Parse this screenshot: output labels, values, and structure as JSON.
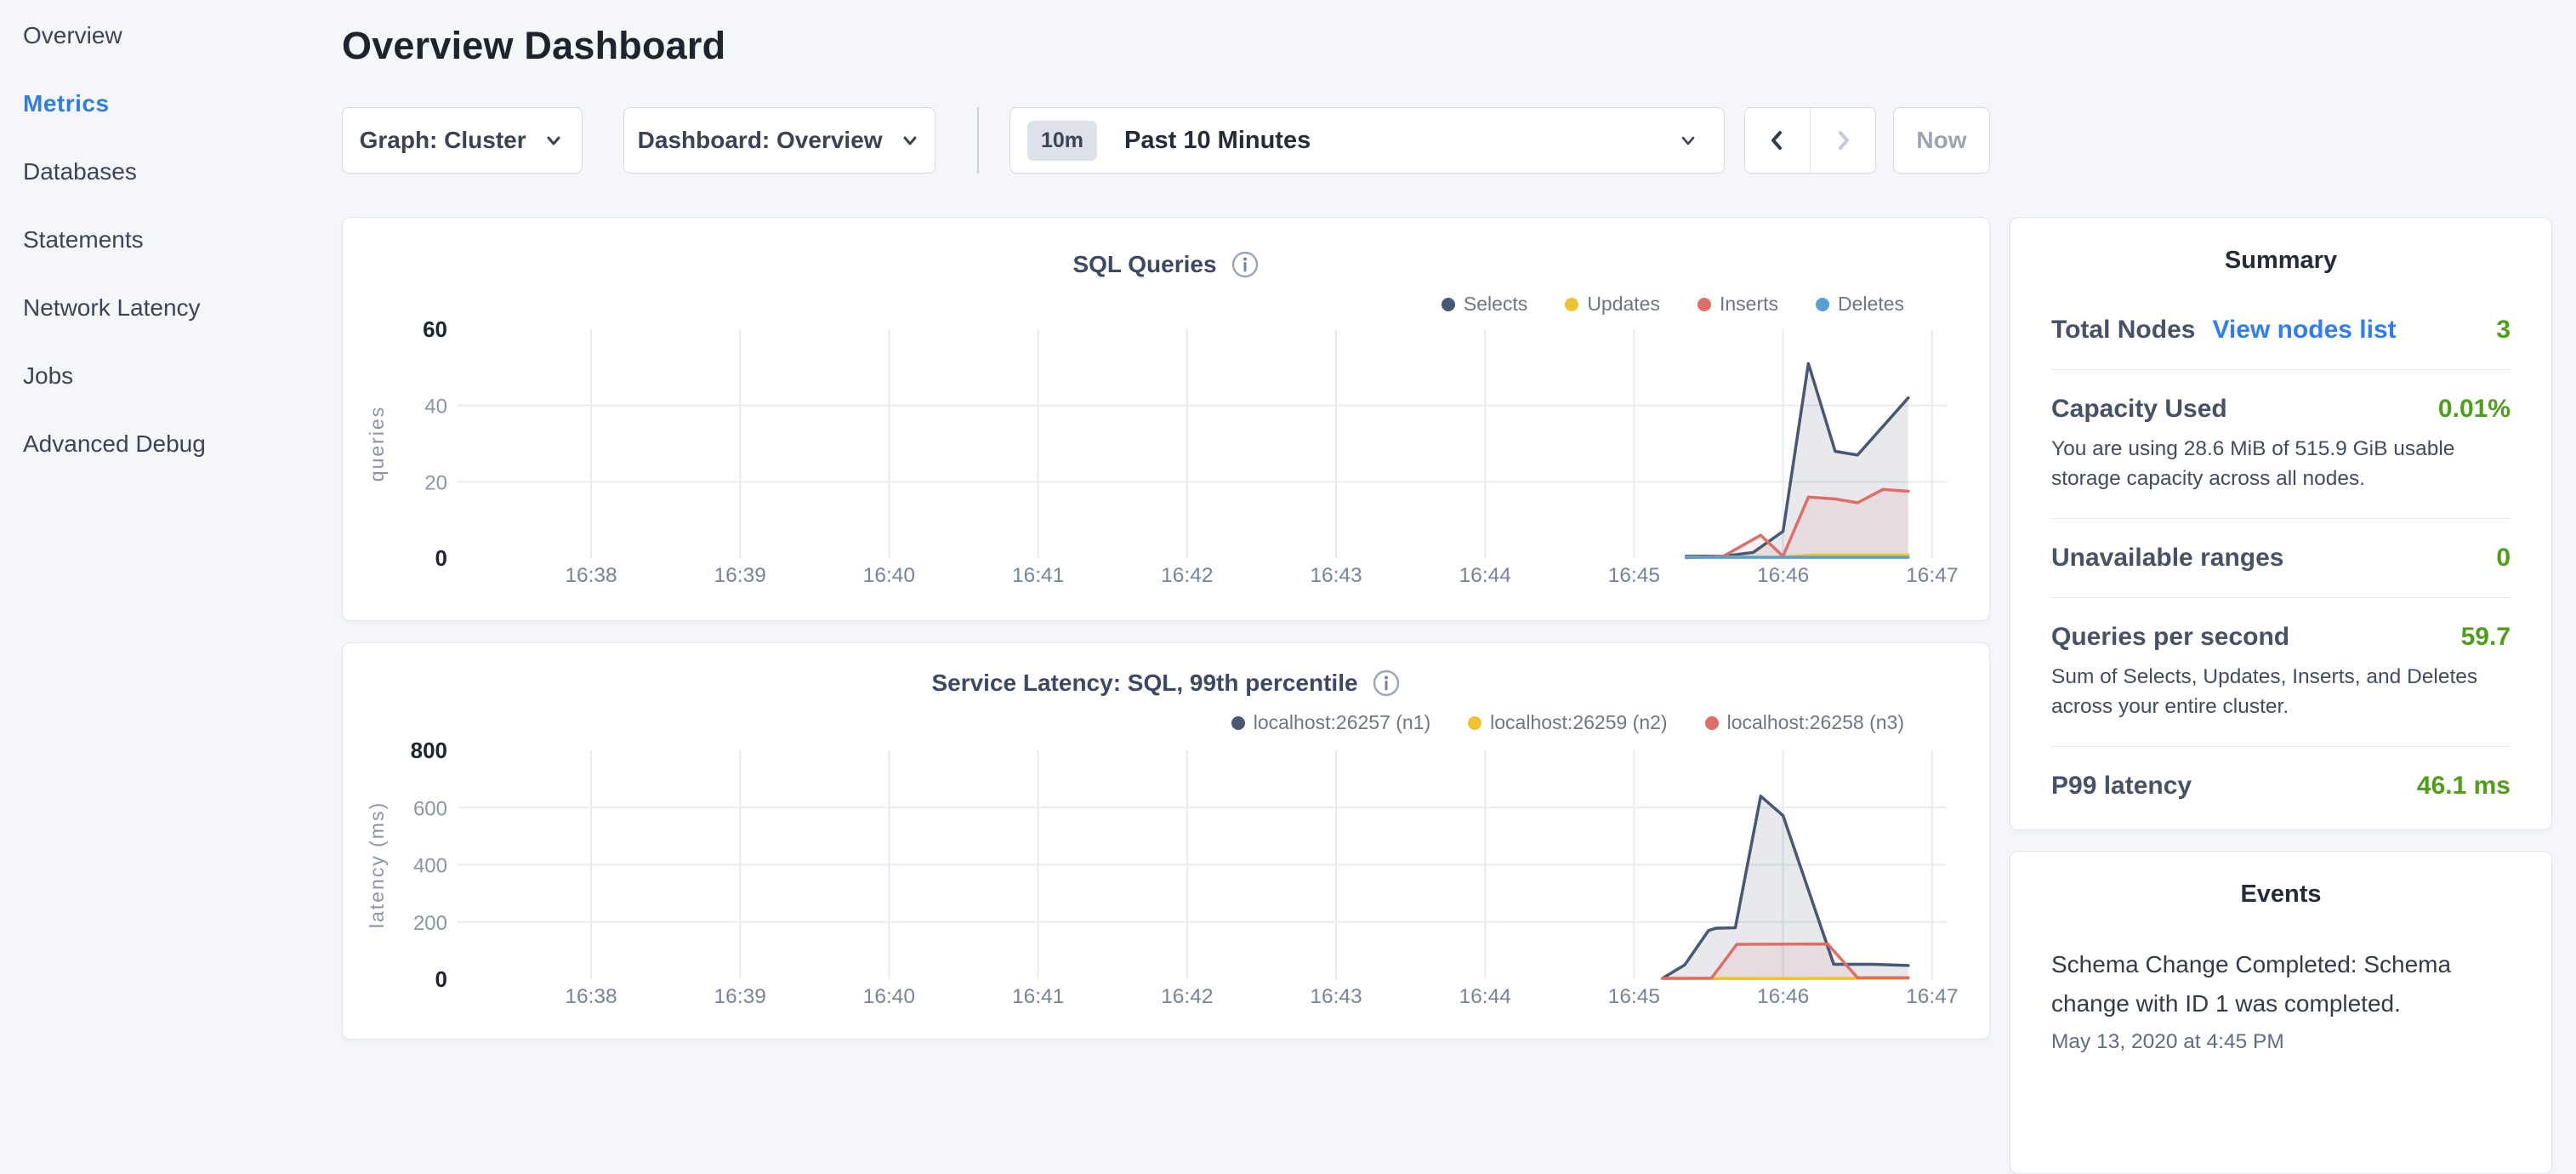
{
  "page": {
    "title": "Overview Dashboard"
  },
  "sidebar": {
    "items": [
      {
        "label": "Overview",
        "active": false
      },
      {
        "label": "Metrics",
        "active": true
      },
      {
        "label": "Databases",
        "active": false
      },
      {
        "label": "Statements",
        "active": false
      },
      {
        "label": "Network Latency",
        "active": false
      },
      {
        "label": "Jobs",
        "active": false
      },
      {
        "label": "Advanced Debug",
        "active": false
      }
    ]
  },
  "controls": {
    "graph_dropdown_label": "Graph: Cluster",
    "dashboard_dropdown_label": "Dashboard: Overview",
    "time_badge": "10m",
    "time_label": "Past 10 Minutes",
    "now_label": "Now"
  },
  "chart_data": [
    {
      "type": "area",
      "title": "SQL Queries",
      "ylabel": "queries",
      "x_tick_labels": [
        "16:38",
        "16:39",
        "16:40",
        "16:41",
        "16:42",
        "16:43",
        "16:44",
        "16:45",
        "16:46",
        "16:47"
      ],
      "x_unit": "minutes since 16:38",
      "ylim": [
        0,
        60
      ],
      "yticks": [
        0,
        20,
        40,
        60
      ],
      "grid": true,
      "legend_position": "top-right",
      "series": [
        {
          "name": "Selects",
          "color": "#475872",
          "fill_opacity": 0.13,
          "points": [
            [
              7.35,
              0.5
            ],
            [
              7.6,
              0.5
            ],
            [
              7.8,
              1.5
            ],
            [
              8.0,
              7
            ],
            [
              8.17,
              51
            ],
            [
              8.35,
              28
            ],
            [
              8.5,
              27
            ],
            [
              8.84,
              42
            ]
          ]
        },
        {
          "name": "Updates",
          "color": "#eec32e",
          "fill_opacity": 0,
          "points": [
            [
              7.35,
              0.3
            ],
            [
              8.0,
              0.3
            ],
            [
              8.2,
              0.8
            ],
            [
              8.84,
              0.8
            ]
          ]
        },
        {
          "name": "Inserts",
          "color": "#df6d68",
          "fill_opacity": 0.1,
          "points": [
            [
              7.35,
              0.1
            ],
            [
              7.6,
              0.5
            ],
            [
              7.85,
              6
            ],
            [
              8.0,
              0.5
            ],
            [
              8.17,
              16
            ],
            [
              8.35,
              15.5
            ],
            [
              8.5,
              14.5
            ],
            [
              8.67,
              18
            ],
            [
              8.84,
              17.5
            ]
          ]
        },
        {
          "name": "Deletes",
          "color": "#57a0d5",
          "fill_opacity": 0,
          "points": [
            [
              7.35,
              0.2
            ],
            [
              8.84,
              0.2
            ]
          ]
        }
      ]
    },
    {
      "type": "area",
      "title": "Service Latency: SQL, 99th percentile",
      "ylabel": "latency (ms)",
      "x_tick_labels": [
        "16:38",
        "16:39",
        "16:40",
        "16:41",
        "16:42",
        "16:43",
        "16:44",
        "16:45",
        "16:46",
        "16:47"
      ],
      "x_unit": "minutes since 16:38",
      "ylim": [
        0,
        800
      ],
      "yticks": [
        0,
        200,
        400,
        600,
        800
      ],
      "grid": true,
      "legend_position": "top-right",
      "series": [
        {
          "name": "localhost:26257 (n1)",
          "color": "#475872",
          "fill_opacity": 0.13,
          "points": [
            [
              7.19,
              3
            ],
            [
              7.34,
              50
            ],
            [
              7.5,
              170
            ],
            [
              7.55,
              178
            ],
            [
              7.68,
              180
            ],
            [
              7.85,
              640
            ],
            [
              8.0,
              572
            ],
            [
              8.34,
              52
            ],
            [
              8.6,
              52
            ],
            [
              8.84,
              48
            ]
          ]
        },
        {
          "name": "localhost:26259 (n2)",
          "color": "#eec32e",
          "fill_opacity": 0,
          "points": [
            [
              7.19,
              2
            ],
            [
              8.84,
              3
            ]
          ]
        },
        {
          "name": "localhost:26258 (n3)",
          "color": "#df6d68",
          "fill_opacity": 0.1,
          "points": [
            [
              7.19,
              3
            ],
            [
              7.52,
              4
            ],
            [
              7.69,
              122
            ],
            [
              8.3,
              123
            ],
            [
              8.5,
              5
            ],
            [
              8.84,
              5
            ]
          ]
        }
      ]
    }
  ],
  "summary": {
    "title": "Summary",
    "rows": [
      {
        "label": "Total Nodes",
        "link": "View nodes list",
        "value": "3"
      },
      {
        "label": "Capacity Used",
        "value": "0.01%",
        "desc": "You are using 28.6 MiB of 515.9 GiB usable storage capacity across all nodes."
      },
      {
        "label": "Unavailable ranges",
        "value": "0"
      },
      {
        "label": "Queries per second",
        "value": "59.7",
        "desc": "Sum of Selects, Updates, Inserts, and Deletes across your entire cluster."
      },
      {
        "label": "P99 latency",
        "value": "46.1 ms"
      }
    ]
  },
  "events": {
    "title": "Events",
    "items": [
      {
        "message": "Schema Change Completed: Schema change with ID 1 was completed.",
        "timestamp": "May 13, 2020 at 4:45 PM"
      }
    ]
  },
  "colors": {
    "accent_blue": "#2f7de1",
    "link_blue": "#2f7df0",
    "value_green": "#4f9e1a",
    "series_navy": "#475872",
    "series_yellow": "#eec32e",
    "series_red": "#df6d68",
    "series_blue": "#57a0d5",
    "page_background": "#f4f6f9"
  }
}
